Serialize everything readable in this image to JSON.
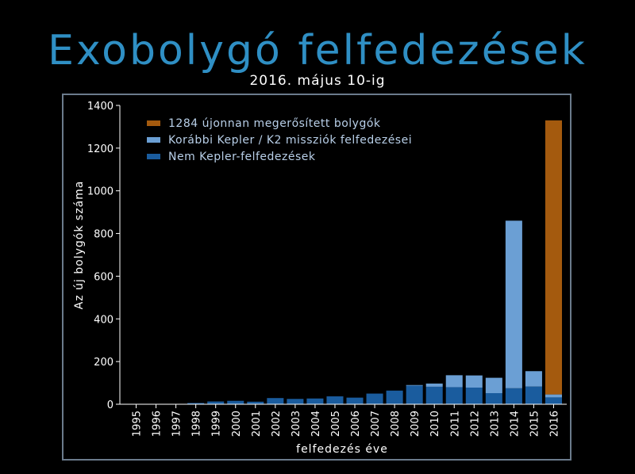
{
  "title": "Exobolygó felfedezések",
  "subtitle": "2016. május 10-ig",
  "colors": {
    "background": "#000000",
    "title": "#2f8fc4",
    "frame": "#6b7b8c",
    "text": "#ffffff",
    "legend_text": "#b8cfe8",
    "new": "#a45a0e",
    "kepler": "#6b9fd4",
    "non_kepler": "#1a5c9e"
  },
  "chart_data": {
    "type": "bar",
    "stacked": true,
    "xlabel": "felfedezés éve",
    "ylabel": "Az új bolygók száma",
    "ylim": [
      0,
      1400
    ],
    "yticks": [
      0,
      200,
      400,
      600,
      800,
      1000,
      1200,
      1400
    ],
    "grid": false,
    "legend_position": "top-left",
    "categories": [
      "1995",
      "1996",
      "1997",
      "1998",
      "1999",
      "2000",
      "2001",
      "2002",
      "2003",
      "2004",
      "2005",
      "2006",
      "2007",
      "2008",
      "2009",
      "2010",
      "2011",
      "2012",
      "2013",
      "2014",
      "2015",
      "2016"
    ],
    "series": [
      {
        "name": "Nem Kepler-felfedezések",
        "color_key": "non_kepler",
        "values": [
          1,
          1,
          1,
          6,
          13,
          16,
          12,
          29,
          25,
          27,
          37,
          31,
          50,
          64,
          87,
          82,
          80,
          78,
          52,
          75,
          83,
          32
        ]
      },
      {
        "name": "Korábbi Kepler / K2 missziók felfedezései",
        "color_key": "kepler",
        "values": [
          0,
          0,
          0,
          0,
          0,
          0,
          0,
          0,
          0,
          0,
          0,
          0,
          0,
          0,
          3,
          15,
          56,
          57,
          72,
          785,
          72,
          14
        ]
      },
      {
        "name": "1284 újonnan megerősített bolygók",
        "color_key": "new",
        "values": [
          0,
          0,
          0,
          0,
          0,
          0,
          0,
          0,
          0,
          0,
          0,
          0,
          0,
          0,
          0,
          0,
          0,
          0,
          0,
          0,
          0,
          1284
        ]
      }
    ],
    "legend_order": [
      2,
      1,
      0
    ]
  }
}
